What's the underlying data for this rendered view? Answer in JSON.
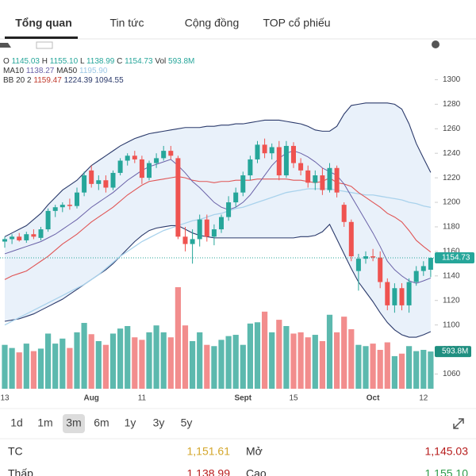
{
  "tabs": [
    "Tổng quan",
    "Tin tức",
    "Cộng đồng",
    "TOP cổ phiếu"
  ],
  "chart_data": {
    "type": "candlestick",
    "categories": [
      "13",
      null,
      null,
      null,
      null,
      null,
      null,
      null,
      null,
      null,
      null,
      null,
      "Aug",
      null,
      null,
      null,
      null,
      null,
      null,
      "11",
      null,
      null,
      null,
      null,
      null,
      null,
      null,
      null,
      null,
      null,
      null,
      null,
      null,
      "Sept",
      null,
      null,
      null,
      null,
      null,
      null,
      "15",
      null,
      null,
      null,
      null,
      null,
      null,
      null,
      null,
      null,
      null,
      "Oct",
      null,
      null,
      null,
      null,
      null,
      null,
      "12",
      null
    ],
    "open": [
      1168,
      1170,
      1172,
      1169,
      1174,
      1171,
      1178,
      1193,
      1196,
      1198,
      1197,
      1208,
      1226,
      1215,
      1218,
      1212,
      1224,
      1234,
      1238,
      1235,
      1220,
      1232,
      1236,
      1242,
      1236,
      1172,
      1166,
      1170,
      1186,
      1172,
      1178,
      1188,
      1200,
      1208,
      1222,
      1235,
      1247,
      1240,
      1245,
      1222,
      1246,
      1232,
      1226,
      1216,
      1222,
      1210,
      1228,
      1198,
      1184,
      1144,
      1154,
      1156,
      1155,
      1135,
      1116,
      1130,
      1116,
      1135,
      1144,
      1145.03
    ],
    "high": [
      1172,
      1174,
      1175,
      1176,
      1178,
      1180,
      1195,
      1198,
      1200,
      1203,
      1212,
      1225,
      1230,
      1222,
      1222,
      1226,
      1236,
      1240,
      1242,
      1238,
      1234,
      1240,
      1246,
      1246,
      1238,
      1180,
      1178,
      1190,
      1190,
      1182,
      1190,
      1205,
      1212,
      1225,
      1238,
      1250,
      1252,
      1248,
      1250,
      1250,
      1249,
      1236,
      1230,
      1226,
      1228,
      1232,
      1230,
      1200,
      1186,
      1158,
      1160,
      1162,
      1160,
      1138,
      1134,
      1134,
      1138,
      1148,
      1152,
      1155.1
    ],
    "low": [
      1163,
      1166,
      1168,
      1167,
      1170,
      1169,
      1176,
      1188,
      1192,
      1194,
      1195,
      1205,
      1212,
      1210,
      1208,
      1210,
      1222,
      1230,
      1232,
      1215,
      1218,
      1228,
      1234,
      1235,
      1170,
      1160,
      1150,
      1164,
      1168,
      1165,
      1175,
      1185,
      1196,
      1205,
      1218,
      1232,
      1236,
      1235,
      1218,
      1220,
      1228,
      1222,
      1212,
      1210,
      1206,
      1208,
      1204,
      1180,
      1152,
      1128,
      1150,
      1152,
      1130,
      1112,
      1110,
      1112,
      1110,
      1132,
      1140,
      1138.99
    ],
    "close": [
      1170,
      1172,
      1169,
      1174,
      1172,
      1178,
      1193,
      1196,
      1198,
      1197,
      1208,
      1222,
      1215,
      1218,
      1212,
      1224,
      1234,
      1238,
      1235,
      1220,
      1232,
      1236,
      1242,
      1238,
      1172,
      1166,
      1170,
      1186,
      1172,
      1178,
      1188,
      1200,
      1208,
      1222,
      1235,
      1247,
      1240,
      1245,
      1222,
      1246,
      1232,
      1226,
      1216,
      1222,
      1210,
      1228,
      1208,
      1184,
      1156,
      1154,
      1156,
      1155,
      1135,
      1116,
      1130,
      1116,
      1135,
      1144,
      1148,
      1154.73
    ],
    "volume": [
      700,
      650,
      580,
      720,
      600,
      640,
      880,
      720,
      800,
      650,
      900,
      1050,
      870,
      760,
      700,
      880,
      960,
      1000,
      820,
      780,
      900,
      1010,
      900,
      820,
      1620,
      1010,
      760,
      900,
      700,
      680,
      780,
      840,
      860,
      700,
      1040,
      1060,
      1230,
      900,
      1100,
      1000,
      880,
      900,
      820,
      860,
      760,
      1180,
      900,
      1150,
      950,
      700,
      680,
      720,
      620,
      740,
      520,
      560,
      680,
      600,
      620,
      593.8
    ],
    "last_volume_label": "593.8M",
    "up_color": "#26a69a",
    "down_color": "#ef5350",
    "volume_up_color": "#5cb9ae",
    "volume_down_color": "#f28d8d",
    "series": [
      {
        "name": "MA10",
        "color": "#6a62a8",
        "values": [
          1158,
          1160,
          1162,
          1164,
          1166,
          1168,
          1171,
          1174,
          1178,
          1182,
          1186,
          1191,
          1196,
          1200,
          1204,
          1208,
          1213,
          1218,
          1222,
          1226,
          1229,
          1231,
          1233,
          1235,
          1230,
          1224,
          1217,
          1212,
          1206,
          1200,
          1196,
          1194,
          1196,
          1200,
          1206,
          1214,
          1222,
          1230,
          1236,
          1240,
          1242,
          1240,
          1237,
          1233,
          1228,
          1225,
          1222,
          1215,
          1205,
          1195,
          1185,
          1175,
          1164,
          1152,
          1145,
          1140,
          1136,
          1134,
          1136,
          1138.27
        ]
      },
      {
        "name": "MA50",
        "color": "#a9d2ec",
        "values": [
          1100,
          1103,
          1106,
          1109,
          1112,
          1115,
          1118,
          1121,
          1124,
          1127,
          1130,
          1133,
          1137,
          1141,
          1146,
          1151,
          1156,
          1160,
          1164,
          1168,
          1171,
          1174,
          1177,
          1179,
          1181,
          1183,
          1185,
          1186,
          1188,
          1190,
          1191,
          1193,
          1195,
          1196,
          1198,
          1200,
          1202,
          1204,
          1206,
          1208,
          1209,
          1210,
          1211,
          1211,
          1211,
          1211,
          1210,
          1209,
          1208,
          1207,
          1206,
          1206,
          1205,
          1204,
          1203,
          1202,
          1200,
          1199,
          1197,
          1195.9
        ]
      }
    ],
    "bollinger": {
      "name": "BB 20 2",
      "band_color": "#2b3a6b",
      "mid_color": "#e05555",
      "fill": "#e9f1fa",
      "mid": [
        1137,
        1140,
        1142,
        1144,
        1148,
        1152,
        1156,
        1161,
        1166,
        1170,
        1174,
        1179,
        1184,
        1188,
        1192,
        1196,
        1201,
        1206,
        1210,
        1214,
        1217,
        1218,
        1219,
        1220,
        1221,
        1220,
        1218,
        1217,
        1217,
        1216,
        1217,
        1217,
        1218,
        1218,
        1218,
        1219,
        1219,
        1219,
        1219,
        1219,
        1218,
        1218,
        1217,
        1216,
        1217,
        1220,
        1216,
        1215,
        1213,
        1208,
        1204,
        1200,
        1196,
        1191,
        1188,
        1184,
        1177,
        1169,
        1164,
        1159.47
      ],
      "upper": [
        1172,
        1175,
        1178,
        1181,
        1186,
        1191,
        1198,
        1204,
        1210,
        1214,
        1218,
        1224,
        1230,
        1234,
        1238,
        1242,
        1246,
        1249,
        1252,
        1254,
        1256,
        1257,
        1258,
        1259,
        1260,
        1261,
        1261,
        1261,
        1262,
        1262,
        1263,
        1263,
        1264,
        1264,
        1265,
        1266,
        1267,
        1267,
        1267,
        1266,
        1265,
        1264,
        1262,
        1259,
        1258,
        1258,
        1262,
        1272,
        1279,
        1280,
        1281,
        1281,
        1281,
        1281,
        1280,
        1276,
        1264,
        1248,
        1236,
        1224.39
      ],
      "lower": [
        1103,
        1104,
        1105,
        1107,
        1109,
        1112,
        1115,
        1118,
        1121,
        1125,
        1129,
        1133,
        1137,
        1141,
        1145,
        1150,
        1156,
        1162,
        1168,
        1173,
        1177,
        1179,
        1180,
        1181,
        1181,
        1178,
        1175,
        1173,
        1172,
        1171,
        1171,
        1171,
        1171,
        1171,
        1171,
        1171,
        1171,
        1171,
        1171,
        1171,
        1171,
        1172,
        1172,
        1173,
        1176,
        1182,
        1170,
        1158,
        1146,
        1135,
        1127,
        1119,
        1110,
        1102,
        1096,
        1092,
        1090,
        1090,
        1092,
        1094.55
      ]
    },
    "legend": {
      "ohlc": [
        {
          "key": "O",
          "value": "1145.03"
        },
        {
          "key": "H",
          "value": "1155.10"
        },
        {
          "key": "L",
          "value": "1138.99"
        },
        {
          "key": "C",
          "value": "1154.73"
        }
      ],
      "vol_key": "Vol",
      "ma10": "1138.27",
      "ma50": "1195.90",
      "bb": [
        "1159.47",
        "1224.39",
        "1094.55"
      ]
    },
    "ylim": [
      1048,
      1321
    ],
    "yticks": [
      1060,
      1080,
      1100,
      1120,
      1140,
      1160,
      1180,
      1200,
      1220,
      1240,
      1260,
      1280,
      1300
    ]
  },
  "ranges": [
    "1d",
    "1m",
    "3m",
    "6m",
    "1y",
    "3y",
    "5y"
  ],
  "selected_range": 2,
  "stats": [
    [
      {
        "label": "TC",
        "value": "1,151.61",
        "color": "#d4a72c"
      },
      {
        "label": "Mở",
        "value": "1,145.03",
        "color": "#b71c1c"
      }
    ],
    [
      {
        "label": "Thấp",
        "value": "1,138.99",
        "color": "#b71c1c"
      },
      {
        "label": "Cao",
        "value": "1,155.10",
        "color": "#2e9d4a"
      }
    ]
  ]
}
